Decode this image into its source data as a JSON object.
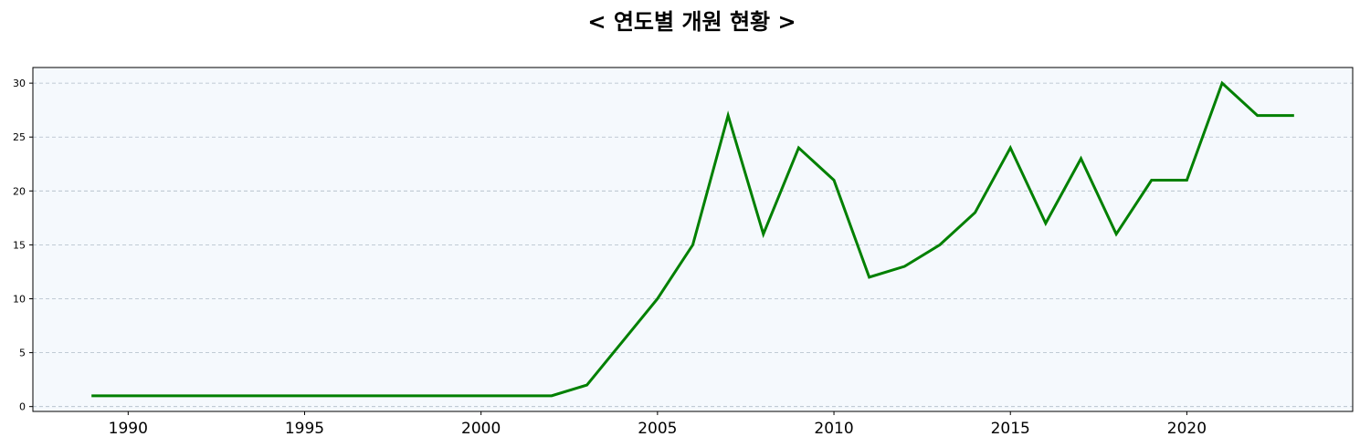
{
  "chart_data": {
    "type": "line",
    "title": "< 연도별 개원 현황 >",
    "xlabel": "",
    "ylabel": "",
    "x": [
      1989,
      1990,
      1991,
      1992,
      1993,
      1994,
      1995,
      1996,
      1997,
      1998,
      1999,
      2000,
      2001,
      2002,
      2003,
      2004,
      2005,
      2006,
      2007,
      2008,
      2009,
      2010,
      2011,
      2012,
      2013,
      2014,
      2015,
      2016,
      2017,
      2018,
      2019,
      2020,
      2021,
      2022,
      2023
    ],
    "series": [
      {
        "values": [
          1,
          1,
          1,
          1,
          1,
          1,
          1,
          1,
          1,
          1,
          1,
          1,
          1,
          1,
          2,
          6,
          10,
          15,
          27,
          16,
          24,
          21,
          12,
          13,
          15,
          18,
          24,
          17,
          23,
          16,
          21,
          21,
          30,
          27,
          27
        ],
        "color": "#008000"
      }
    ],
    "xlim": [
      1987.3,
      2024.7
    ],
    "ylim": [
      -0.45,
      31.45
    ],
    "xticks": [
      "1990",
      "1995",
      "2000",
      "2005",
      "2010",
      "2015",
      "2020"
    ],
    "yticks": [
      "0",
      "5",
      "10",
      "15",
      "20",
      "25",
      "30"
    ],
    "grid": "horizontal dashed",
    "legend": "none",
    "plot_background": "#f5f9fd"
  }
}
